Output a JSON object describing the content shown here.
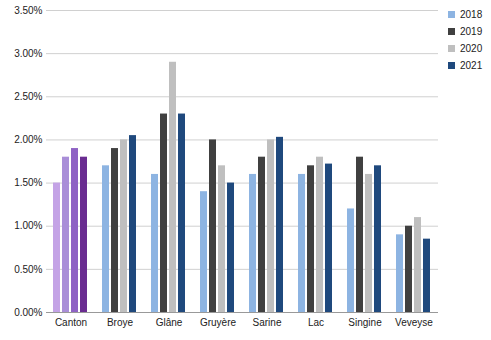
{
  "chart_data": {
    "type": "bar",
    "categories": [
      "Canton",
      "Broye",
      "Glâne",
      "Gruyère",
      "Sarine",
      "Lac",
      "Singine",
      "Veveyse"
    ],
    "series": [
      {
        "name": "2018",
        "color": "#8DB4E2",
        "colors": [
          "#C4A3E6",
          "#8DB4E2",
          "#8DB4E2",
          "#8DB4E2",
          "#8DB4E2",
          "#8DB4E2",
          "#8DB4E2",
          "#8DB4E2"
        ],
        "values": [
          1.5,
          1.7,
          1.6,
          1.4,
          1.6,
          1.6,
          1.2,
          0.9
        ]
      },
      {
        "name": "2019",
        "color": "#404040",
        "colors": [
          "#A98ED8",
          "#404040",
          "#404040",
          "#404040",
          "#404040",
          "#404040",
          "#404040",
          "#404040"
        ],
        "values": [
          1.8,
          1.9,
          2.3,
          2.0,
          1.8,
          1.7,
          1.8,
          1.0
        ]
      },
      {
        "name": "2020",
        "color": "#BFBFBF",
        "colors": [
          "#8E62C4",
          "#BFBFBF",
          "#BFBFBF",
          "#BFBFBF",
          "#BFBFBF",
          "#BFBFBF",
          "#BFBFBF",
          "#BFBFBF"
        ],
        "values": [
          1.9,
          2.0,
          2.9,
          1.7,
          2.0,
          1.8,
          1.6,
          1.1
        ]
      },
      {
        "name": "2021",
        "color": "#1F497D",
        "colors": [
          "#6A2C91",
          "#1F497D",
          "#1F497D",
          "#1F497D",
          "#1F497D",
          "#1F497D",
          "#1F497D",
          "#1F497D"
        ],
        "values": [
          1.8,
          2.05,
          2.3,
          1.5,
          2.03,
          1.72,
          1.7,
          0.85
        ]
      }
    ],
    "ylim": [
      0,
      3.5
    ],
    "yticks": [
      {
        "value": 0,
        "label": "0.00%"
      },
      {
        "value": 0.5,
        "label": "0.50%"
      },
      {
        "value": 1,
        "label": "1.00%"
      },
      {
        "value": 1.5,
        "label": "1.50%"
      },
      {
        "value": 2,
        "label": "2.00%"
      },
      {
        "value": 2.5,
        "label": "2.50%"
      },
      {
        "value": 3,
        "label": "3.00%"
      },
      {
        "value": 3.5,
        "label": "3.50%"
      }
    ],
    "grid": true,
    "legend": "top-right"
  }
}
